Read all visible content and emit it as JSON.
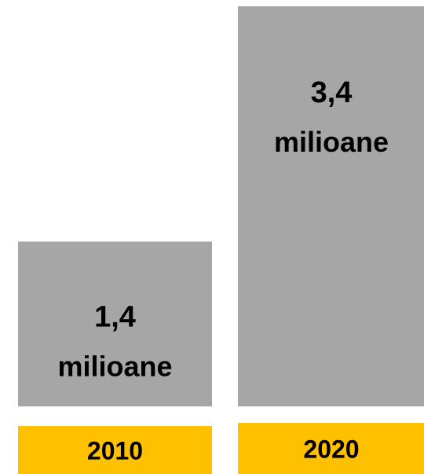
{
  "chart_data": {
    "type": "bar",
    "categories": [
      "2010",
      "2020"
    ],
    "values": [
      1.4,
      3.4
    ],
    "value_labels": [
      {
        "value": "1,4",
        "unit": "milioane"
      },
      {
        "value": "3,4",
        "unit": "milioane"
      }
    ],
    "title": "",
    "xlabel": "",
    "ylabel": "",
    "ylim": [
      0,
      3.4
    ],
    "grid": false,
    "legend": "none"
  },
  "colors": {
    "bar": "#a6a6a6",
    "category_box": "#ffc000",
    "text": "#000000"
  }
}
